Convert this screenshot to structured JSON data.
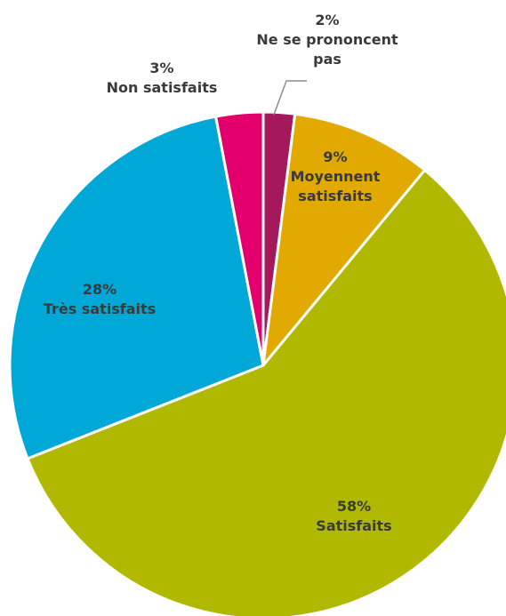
{
  "chart_data": {
    "type": "pie",
    "title": "",
    "slices": [
      {
        "label": "Ne se prononcent pas",
        "label_lines": [
          "Ne se prononcent",
          "pas"
        ],
        "value": 2,
        "percent_text": "2%",
        "color": "#a3195b"
      },
      {
        "label": "Moyennent satisfaits",
        "label_lines": [
          "Moyennent",
          "satisfaits"
        ],
        "value": 9,
        "percent_text": "9%",
        "color": "#e2a900"
      },
      {
        "label": "Satisfaits",
        "label_lines": [
          "Satisfaits"
        ],
        "value": 58,
        "percent_text": "58%",
        "color": "#b1b800"
      },
      {
        "label": "Très satisfaits",
        "label_lines": [
          "Très satisfaits"
        ],
        "value": 28,
        "percent_text": "28%",
        "color": "#00a8d8"
      },
      {
        "label": "Non satisfaits",
        "label_lines": [
          "Non satisfaits"
        ],
        "value": 3,
        "percent_text": "3%",
        "color": "#e3006d"
      }
    ],
    "start_angle_deg": 0,
    "direction": "clockwise",
    "slice_border_color": "#ffffff",
    "label_color": "#3a3a3a",
    "leader_line_color": "#8c8c8c"
  }
}
